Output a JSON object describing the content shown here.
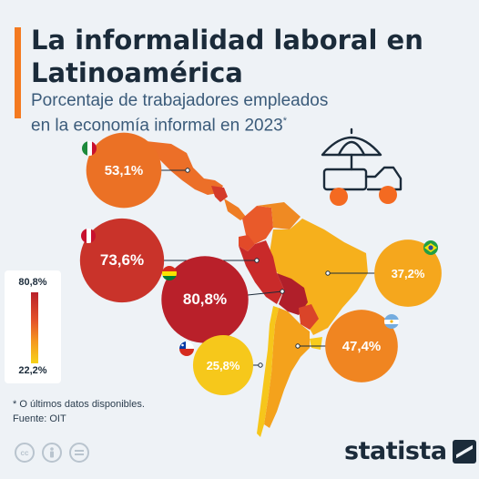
{
  "header": {
    "title": "La informalidad laboral en Latinoamérica",
    "subtitle": "Porcentaje de trabajadores empleados en la economía informal en 2023",
    "subtitle_marker": "*"
  },
  "chart_data": {
    "type": "map",
    "title": "La informalidad laboral en Latinoamérica",
    "subtitle": "Porcentaje de trabajadores empleados en la economía informal en 2023",
    "unit": "%",
    "categories": [
      "México",
      "Perú",
      "Bolivia",
      "Brasil",
      "Argentina",
      "Chile"
    ],
    "values": [
      53.1,
      73.6,
      80.8,
      37.2,
      47.4,
      25.8
    ],
    "value_labels": [
      "53,1%",
      "73,6%",
      "80,8%",
      "37,2%",
      "47,4%",
      "25,8%"
    ],
    "color_scale": {
      "min": 22.2,
      "max": 80.8,
      "min_label": "22,2%",
      "max_label": "80,8%",
      "colors": [
        "#f6d21a",
        "#f59a1e",
        "#e4532a",
        "#b9202a"
      ]
    }
  },
  "legend": {
    "max_label": "80,8%",
    "min_label": "22,2%"
  },
  "footnote": {
    "note": "* O últimos datos disponibles.",
    "source": "Fuente: OIT"
  },
  "brand": {
    "name": "statista"
  },
  "colors": {
    "accent": "#f47a20",
    "background": "#eef2f6",
    "title": "#1b2b3a",
    "subtitle": "#3b5b7a"
  },
  "icons": [
    "street-vendor-cart-icon",
    "cc-license-icon",
    "cc-by-icon",
    "cc-nd-icon",
    "flag-icon",
    "statista-logo-icon"
  ]
}
